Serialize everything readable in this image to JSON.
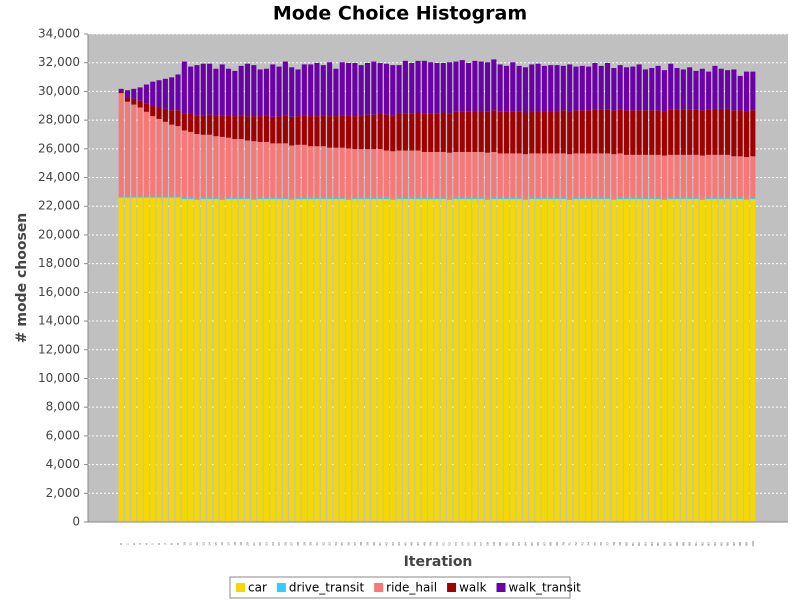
{
  "chart_data": {
    "type": "stacked_bar",
    "title": "Mode Choice Histogram",
    "x_label": "Iteration",
    "y_label": "# mode choosen",
    "categories": [
      0,
      1,
      2,
      3,
      4,
      5,
      6,
      7,
      8,
      9,
      10,
      11,
      12,
      13,
      14,
      15,
      16,
      17,
      18,
      19,
      20,
      21,
      22,
      23,
      24,
      25,
      26,
      27,
      28,
      29,
      30,
      31,
      32,
      33,
      34,
      35,
      36,
      37,
      38,
      39,
      40,
      41,
      42,
      43,
      44,
      45,
      46,
      47,
      48,
      49,
      50,
      51,
      52,
      53,
      54,
      55,
      56,
      57,
      58,
      59,
      60,
      61,
      62,
      63,
      64,
      65,
      66,
      67,
      68,
      69,
      70,
      71,
      72,
      73,
      74,
      75,
      76,
      77,
      78,
      79,
      80,
      81,
      82,
      83,
      84,
      85,
      86,
      87,
      88,
      89,
      90,
      91,
      92,
      93,
      94,
      95,
      96,
      97,
      98,
      99,
      100
    ],
    "series": [
      {
        "name": "car",
        "color": "#f5d800",
        "values": [
          22600,
          22600,
          22600,
          22600,
          22600,
          22600,
          22600,
          22600,
          22600,
          22600,
          22500,
          22500,
          22450,
          22500,
          22500,
          22500,
          22450,
          22500,
          22500,
          22500,
          22500,
          22450,
          22500,
          22500,
          22500,
          22500,
          22500,
          22450,
          22500,
          22500,
          22500,
          22500,
          22500,
          22500,
          22500,
          22500,
          22450,
          22500,
          22500,
          22500,
          22500,
          22500,
          22500,
          22450,
          22500,
          22500,
          22500,
          22500,
          22500,
          22500,
          22500,
          22500,
          22450,
          22500,
          22500,
          22500,
          22500,
          22500,
          22450,
          22500,
          22500,
          22500,
          22500,
          22500,
          22450,
          22500,
          22500,
          22500,
          22500,
          22500,
          22500,
          22450,
          22500,
          22500,
          22500,
          22500,
          22500,
          22500,
          22450,
          22500,
          22500,
          22500,
          22500,
          22500,
          22500,
          22500,
          22450,
          22500,
          22500,
          22500,
          22500,
          22500,
          22450,
          22500,
          22500,
          22500,
          22500,
          22500,
          22500,
          22450,
          22500
        ]
      },
      {
        "name": "drive_transit",
        "color": "#33ccff",
        "values": [
          80,
          80,
          80,
          80,
          80,
          80,
          80,
          80,
          80,
          80,
          80,
          80,
          80,
          80,
          80,
          80,
          80,
          80,
          80,
          80,
          80,
          80,
          80,
          80,
          80,
          80,
          80,
          80,
          80,
          80,
          80,
          80,
          80,
          80,
          80,
          80,
          80,
          80,
          80,
          80,
          80,
          80,
          80,
          80,
          80,
          80,
          80,
          80,
          80,
          80,
          80,
          80,
          80,
          80,
          80,
          80,
          80,
          80,
          80,
          80,
          80,
          80,
          80,
          80,
          80,
          80,
          80,
          80,
          80,
          80,
          80,
          80,
          80,
          80,
          80,
          80,
          80,
          80,
          80,
          80,
          80,
          80,
          80,
          80,
          80,
          80,
          80,
          80,
          80,
          80,
          80,
          80,
          80,
          80,
          80,
          80,
          80,
          80,
          80,
          80,
          80
        ]
      },
      {
        "name": "ride_hail",
        "color": "#f87878",
        "values": [
          7200,
          6600,
          6400,
          6200,
          5900,
          5600,
          5400,
          5200,
          5000,
          4900,
          4700,
          4600,
          4500,
          4400,
          4400,
          4300,
          4300,
          4200,
          4100,
          4100,
          4000,
          4000,
          3900,
          3900,
          3800,
          3800,
          3800,
          3700,
          3700,
          3700,
          3600,
          3600,
          3600,
          3500,
          3500,
          3500,
          3500,
          3400,
          3400,
          3400,
          3400,
          3400,
          3300,
          3300,
          3300,
          3300,
          3300,
          3300,
          3200,
          3200,
          3200,
          3200,
          3200,
          3200,
          3200,
          3200,
          3200,
          3200,
          3200,
          3200,
          3100,
          3100,
          3100,
          3100,
          3100,
          3100,
          3100,
          3100,
          3100,
          3100,
          3100,
          3100,
          3100,
          3100,
          3100,
          3100,
          3100,
          3100,
          3100,
          3100,
          3000,
          3000,
          3000,
          3000,
          3000,
          3000,
          3000,
          3000,
          3000,
          3000,
          3000,
          3000,
          3000,
          3000,
          3000,
          3000,
          3000,
          2900,
          2900,
          2900,
          2900
        ]
      },
      {
        "name": "walk",
        "color": "#a00000",
        "values": [
          150,
          300,
          400,
          500,
          600,
          700,
          800,
          900,
          1000,
          1100,
          1200,
          1250,
          1300,
          1350,
          1400,
          1450,
          1500,
          1550,
          1600,
          1650,
          1700,
          1750,
          1800,
          1850,
          1850,
          1900,
          1950,
          2000,
          2000,
          2050,
          2100,
          2100,
          2150,
          2200,
          2200,
          2250,
          2300,
          2300,
          2350,
          2400,
          2400,
          2450,
          2500,
          2500,
          2550,
          2600,
          2600,
          2650,
          2700,
          2700,
          2700,
          2750,
          2750,
          2800,
          2800,
          2800,
          2850,
          2850,
          2850,
          2900,
          2900,
          2900,
          2900,
          2900,
          2900,
          2950,
          2950,
          2950,
          2950,
          2950,
          3000,
          3000,
          3000,
          3000,
          3000,
          3050,
          3050,
          3050,
          3050,
          3050,
          3100,
          3100,
          3100,
          3100,
          3100,
          3100,
          3100,
          3150,
          3150,
          3150,
          3150,
          3150,
          3150,
          3150,
          3200,
          3200,
          3200,
          3200,
          3200,
          3200,
          3200
        ]
      },
      {
        "name": "walk_transit",
        "color": "#6a00a8",
        "values": [
          150,
          500,
          700,
          900,
          1300,
          1700,
          1900,
          2100,
          2300,
          2500,
          3600,
          3300,
          3500,
          3600,
          3550,
          3250,
          3550,
          3250,
          3150,
          3450,
          3650,
          3550,
          3250,
          3250,
          3650,
          3450,
          3750,
          3450,
          3250,
          3550,
          3600,
          3700,
          3500,
          3750,
          3300,
          3700,
          3650,
          3700,
          3500,
          3600,
          3700,
          3550,
          3550,
          3500,
          3400,
          3650,
          3500,
          3600,
          3650,
          3550,
          3500,
          3450,
          3550,
          3500,
          3600,
          3400,
          3500,
          3450,
          3450,
          3550,
          3300,
          3200,
          3450,
          3200,
          3150,
          3250,
          3300,
          3150,
          3200,
          3200,
          3100,
          3250,
          3050,
          3100,
          3050,
          3250,
          3050,
          3250,
          2950,
          3100,
          3000,
          3050,
          3200,
          2850,
          2950,
          3100,
          2850,
          3200,
          2900,
          2800,
          2950,
          2700,
          2900,
          2650,
          3000,
          2800,
          2700,
          2850,
          2400,
          2750,
          2700
        ]
      }
    ],
    "ylim": [
      0,
      34000
    ],
    "yticks": [
      0,
      {
        "value": 2000,
        "label": "2,000"
      },
      {
        "value": 4000,
        "label": "4,000"
      },
      {
        "value": 6000,
        "label": "6,000"
      },
      {
        "value": 8000,
        "label": "8,000"
      },
      {
        "value": 10000,
        "label": "10,000"
      },
      {
        "value": 12000,
        "label": "12,000"
      },
      {
        "value": 14000,
        "label": "14,000"
      },
      {
        "value": 16000,
        "label": "16,000"
      },
      {
        "value": 18000,
        "label": "18,000"
      },
      {
        "value": 20000,
        "label": "20,000"
      },
      {
        "value": 22000,
        "label": "22,000"
      },
      {
        "value": 24000,
        "label": "24,000"
      },
      {
        "value": 26000,
        "label": "26,000"
      },
      {
        "value": 28000,
        "label": "28,000"
      },
      {
        "value": 30000,
        "label": "30,000"
      },
      {
        "value": 32000,
        "label": "32,000"
      },
      {
        "value": 34000,
        "label": "34,000"
      }
    ],
    "grid": true,
    "legend": "bottom"
  }
}
